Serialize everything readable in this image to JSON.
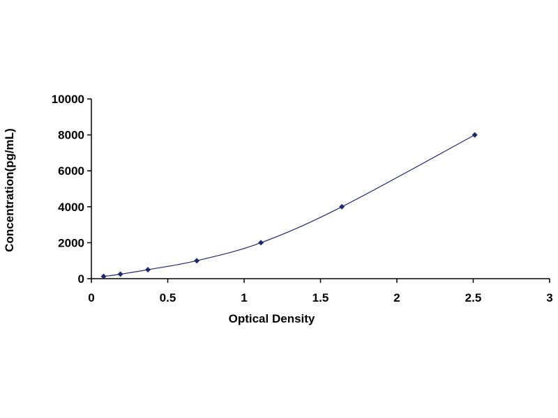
{
  "chart_data": {
    "type": "scatter",
    "title": "",
    "xlabel": "Optical Density",
    "ylabel": "Concentration(pg/mL)",
    "xlim": [
      0,
      3
    ],
    "ylim": [
      0,
      10000
    ],
    "x_ticks": [
      "0",
      "0.5",
      "1",
      "1.5",
      "2",
      "2.5",
      "3"
    ],
    "y_ticks": [
      "0",
      "2000",
      "4000",
      "6000",
      "8000",
      "10000"
    ],
    "grid": false,
    "legend": "none",
    "marker": "diamond",
    "trendline": "smooth curve",
    "colors": {
      "series": "#1f2a6b",
      "axis": "#000000",
      "background": "#ffffff"
    },
    "series": [
      {
        "x": [
          0.08,
          0.19,
          0.37,
          0.69,
          1.11,
          1.64,
          2.51
        ],
        "y": [
          125,
          250,
          500,
          1000,
          2000,
          4000,
          8000
        ]
      }
    ]
  }
}
